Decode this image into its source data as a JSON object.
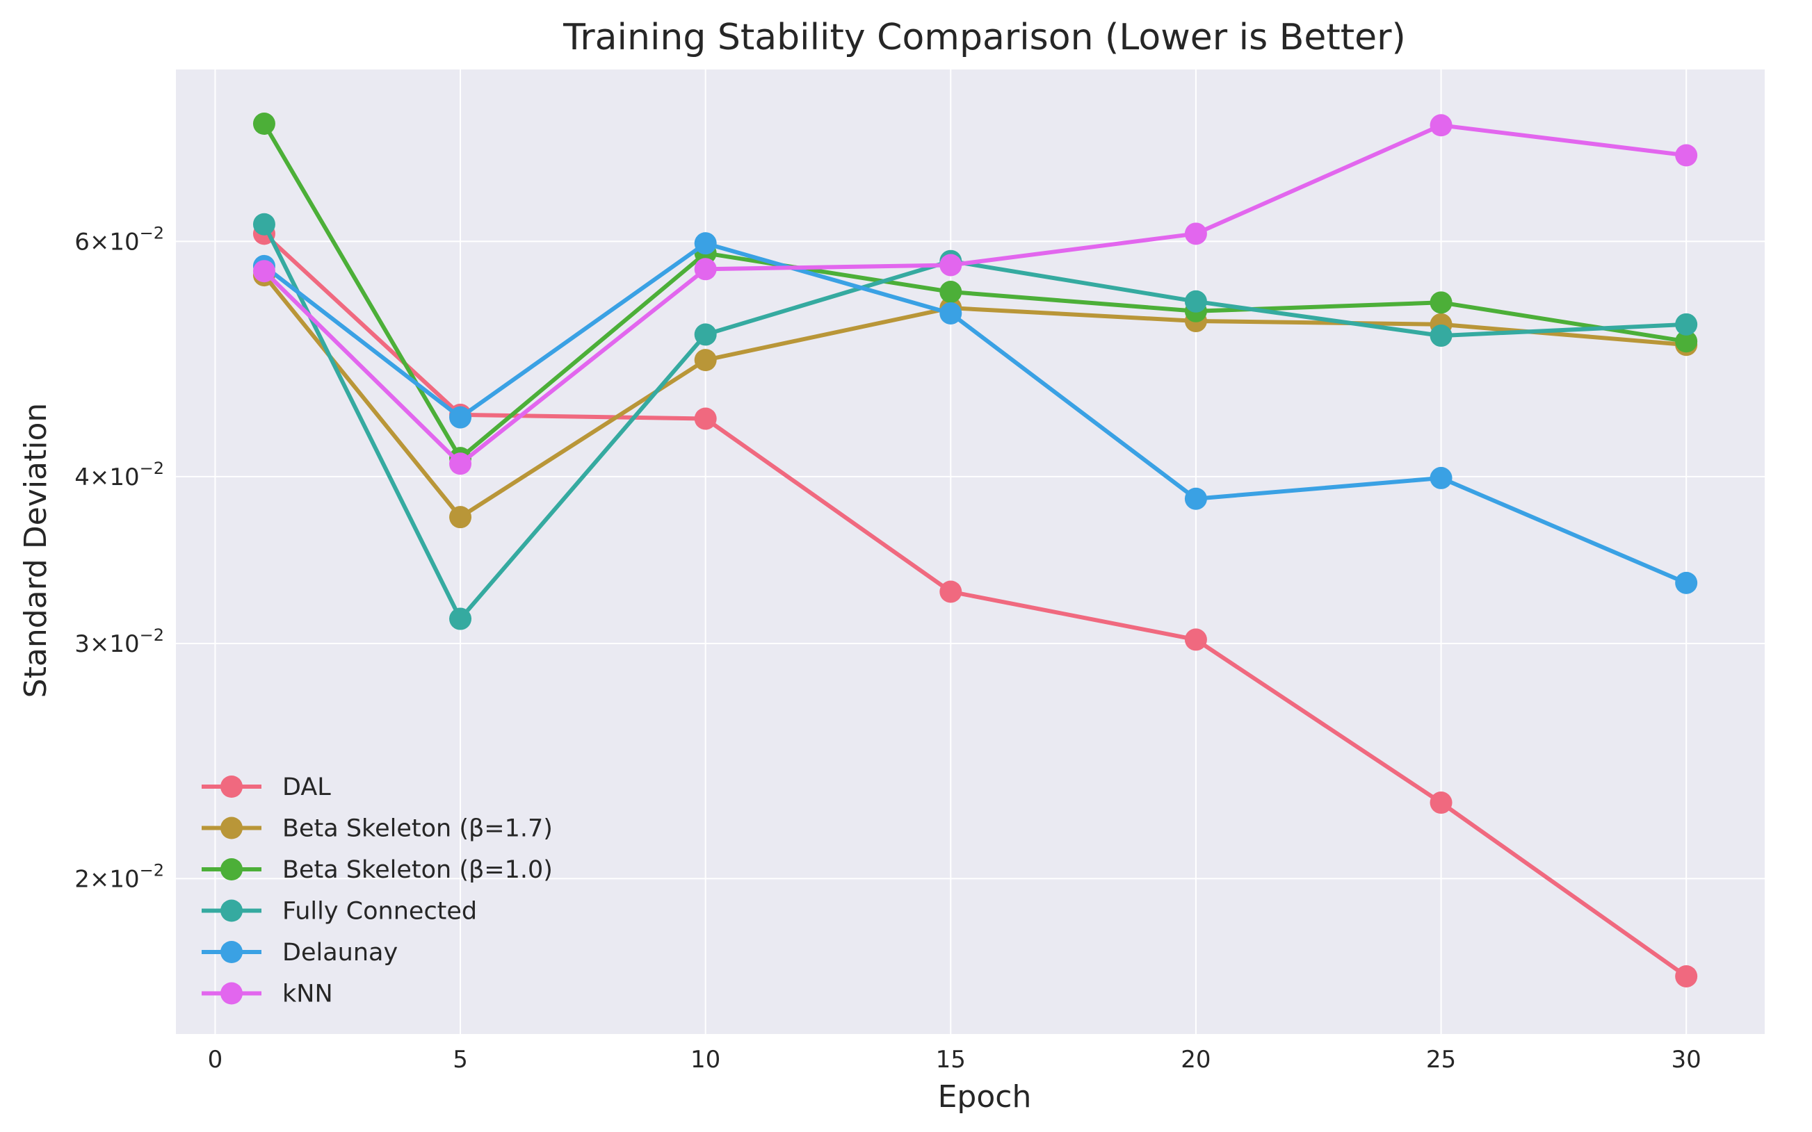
{
  "chart_data": {
    "type": "line",
    "title": "Training Stability Comparison (Lower is Better)",
    "xlabel": "Epoch",
    "ylabel": "Standard Deviation",
    "xlim": [
      -0.8,
      31.6
    ],
    "ylim": [
      0.0153,
      0.0807
    ],
    "yscale": "log",
    "grid": true,
    "legend_position": "lower-left",
    "x_ticks": [
      0,
      5,
      10,
      15,
      20,
      25,
      30
    ],
    "x_tick_labels": [
      "0",
      "5",
      "10",
      "15",
      "20",
      "25",
      "30"
    ],
    "y_ticks": [
      0.02,
      0.03,
      0.04,
      0.06
    ],
    "y_tick_labels": [
      {
        "mant": "2",
        "exp": "−2"
      },
      {
        "mant": "3",
        "exp": "−2"
      },
      {
        "mant": "4",
        "exp": "−2"
      },
      {
        "mant": "6",
        "exp": "−2"
      }
    ],
    "x": [
      1,
      5,
      10,
      15,
      20,
      25,
      30
    ],
    "series": [
      {
        "name": "DAL",
        "color": "#f0697f",
        "values": [
          0.0608,
          0.0445,
          0.0442,
          0.0328,
          0.0302,
          0.0228,
          0.0169
        ]
      },
      {
        "name": "Beta Skeleton (β=1.7)",
        "color": "#b99638",
        "values": [
          0.0566,
          0.0373,
          0.0489,
          0.0535,
          0.0523,
          0.052,
          0.0502
        ]
      },
      {
        "name": "Beta Skeleton (β=1.0)",
        "color": "#4caf38",
        "values": [
          0.0735,
          0.0413,
          0.0588,
          0.055,
          0.0532,
          0.054,
          0.0505
        ]
      },
      {
        "name": "Fully Connected",
        "color": "#35aaa0",
        "values": [
          0.0618,
          0.0313,
          0.0511,
          0.058,
          0.0541,
          0.051,
          0.052
        ]
      },
      {
        "name": "Delaunay",
        "color": "#3aa1e4",
        "values": [
          0.0575,
          0.0443,
          0.0598,
          0.053,
          0.0385,
          0.0399,
          0.0333
        ]
      },
      {
        "name": "kNN",
        "color": "#e266ee",
        "values": [
          0.057,
          0.0409,
          0.0572,
          0.0576,
          0.0608,
          0.0733,
          0.0696
        ]
      }
    ]
  }
}
